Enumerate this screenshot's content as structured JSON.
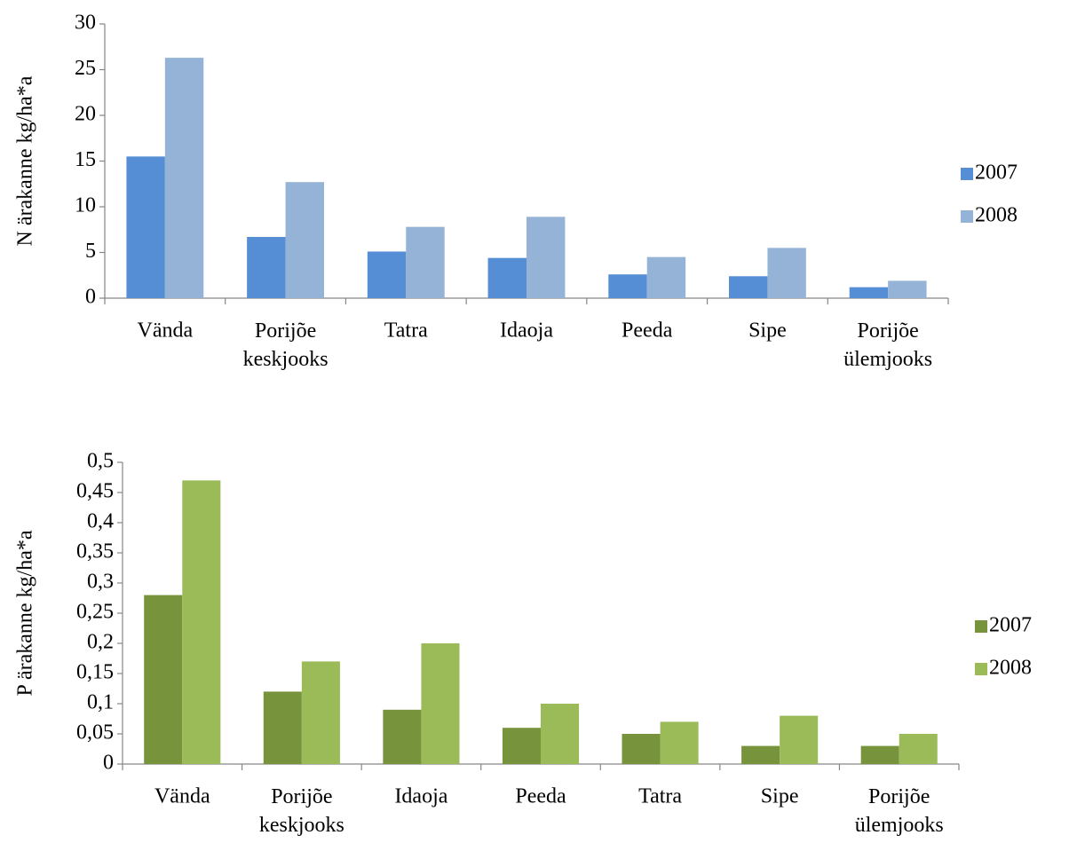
{
  "chart_data": [
    {
      "type": "bar",
      "y_label": "N ärakanne kg/ha*a",
      "categories": [
        "Vända",
        "Porijõe keskjooks",
        "Tatra",
        "Idaoja",
        "Peeda",
        "Sipe",
        "Porijõe ülemjooks"
      ],
      "series": [
        {
          "name": "2007",
          "color": "#558ed5",
          "values": [
            15.5,
            6.7,
            5.1,
            4.4,
            2.6,
            2.4,
            1.2
          ]
        },
        {
          "name": "2008",
          "color": "#95b3d7",
          "values": [
            26.3,
            12.7,
            7.8,
            8.9,
            4.5,
            5.5,
            1.9
          ]
        }
      ],
      "ylim": [
        0,
        30
      ],
      "yticks": [
        0,
        5,
        10,
        15,
        20,
        25,
        30
      ],
      "legend": "right"
    },
    {
      "type": "bar",
      "y_label": "P ärakanne kg/ha*a",
      "categories": [
        "Vända",
        "Porijõe keskjooks",
        "Idaoja",
        "Peeda",
        "Tatra",
        "Sipe",
        "Porijõe ülemjooks"
      ],
      "series": [
        {
          "name": "2007",
          "color": "#77933c",
          "values": [
            0.28,
            0.12,
            0.09,
            0.06,
            0.05,
            0.03,
            0.03
          ]
        },
        {
          "name": "2008",
          "color": "#9bbb59",
          "values": [
            0.47,
            0.17,
            0.2,
            0.1,
            0.07,
            0.08,
            0.05
          ]
        }
      ],
      "ylim": [
        0,
        0.5
      ],
      "yticks": [
        0,
        {
          "value": 0.05,
          "label": "0,05"
        },
        {
          "value": 0.1,
          "label": "0,1"
        },
        {
          "value": 0.15,
          "label": "0,15"
        },
        {
          "value": 0.2,
          "label": "0,2"
        },
        {
          "value": 0.25,
          "label": "0,25"
        },
        {
          "value": 0.3,
          "label": "0,3"
        },
        {
          "value": 0.35,
          "label": "0,35"
        },
        {
          "value": 0.4,
          "label": "0,4"
        },
        {
          "value": 0.45,
          "label": "0,45"
        },
        {
          "value": 0.5,
          "label": "0,5"
        }
      ],
      "legend": "right"
    }
  ]
}
